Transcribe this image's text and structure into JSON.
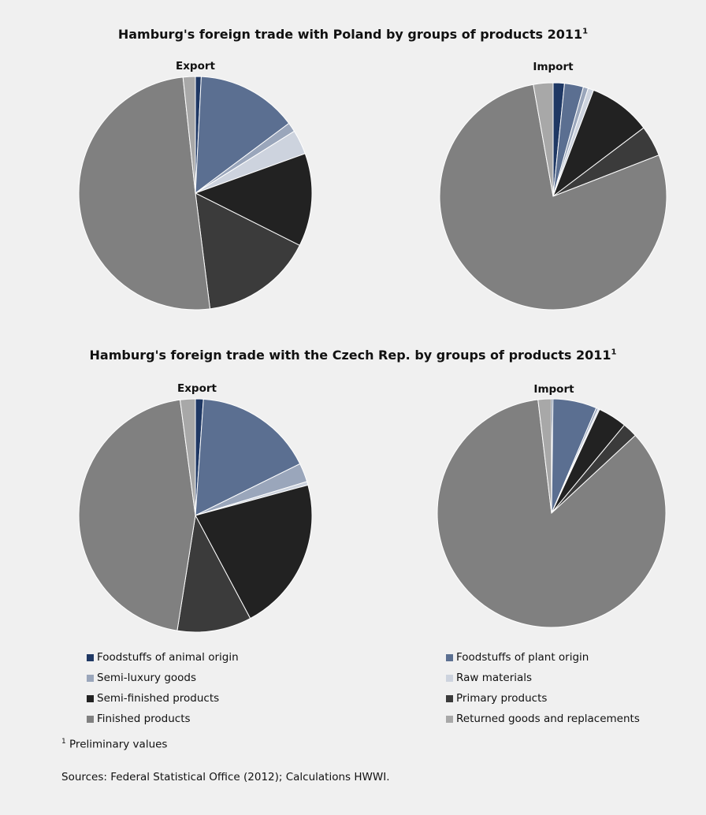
{
  "titles": {
    "poland": "Hamburg's foreign trade with Poland by groups of products 2011",
    "czech": "Hamburg's foreign trade with the Czech Rep. by groups of products 2011",
    "footnote_mark": "1"
  },
  "colors": {
    "Foodstuffs of animal origin": "#1f3864",
    "Foodstuffs of plant origin": "#5b6f91",
    "Semi-luxury goods": "#9aa6bb",
    "Raw materials": "#cdd3de",
    "Semi-finished products": "#222222",
    "Primary products": "#3b3b3b",
    "Finished products": "#808080",
    "Returned goods and replacements": "#a8a8a8"
  },
  "chart_data": [
    {
      "type": "pie",
      "title": "Hamburg's foreign trade with Poland by groups of products 2011",
      "subtitle": "Export",
      "categories": [
        "Foodstuffs of animal origin",
        "Foodstuffs of plant origin",
        "Semi-luxury goods",
        "Raw materials",
        "Semi-finished products",
        "Primary products",
        "Finished products",
        "Returned goods and replacements"
      ],
      "values": [
        0.8,
        14.0,
        1.3,
        3.4,
        12.9,
        15.6,
        50.3,
        1.7
      ]
    },
    {
      "type": "pie",
      "title": "Hamburg's foreign trade with Poland by groups of products 2011",
      "subtitle": "Import",
      "categories": [
        "Foodstuffs of animal origin",
        "Foodstuffs of plant origin",
        "Semi-luxury goods",
        "Raw materials",
        "Semi-finished products",
        "Primary products",
        "Finished products",
        "Returned goods and replacements"
      ],
      "values": [
        1.6,
        2.7,
        0.7,
        0.8,
        8.9,
        4.4,
        78.1,
        2.8
      ]
    },
    {
      "type": "pie",
      "title": "Hamburg's foreign trade with the Czech Rep. by groups of products 2011",
      "subtitle": "Export",
      "categories": [
        "Foodstuffs of animal origin",
        "Foodstuffs of plant origin",
        "Semi-luxury goods",
        "Raw materials",
        "Semi-finished products",
        "Primary products",
        "Finished products",
        "Returned goods and replacements"
      ],
      "values": [
        1.1,
        16.6,
        2.6,
        0.5,
        21.4,
        10.3,
        45.4,
        2.1
      ]
    },
    {
      "type": "pie",
      "title": "Hamburg's foreign trade with the Czech Rep. by groups of products 2011",
      "subtitle": "Import",
      "categories": [
        "Foodstuffs of animal origin",
        "Foodstuffs of plant origin",
        "Semi-luxury goods",
        "Raw materials",
        "Semi-finished products",
        "Primary products",
        "Finished products",
        "Returned goods and replacements"
      ],
      "values": [
        0.2,
        6.2,
        0.3,
        0.2,
        4.1,
        2.1,
        85.0,
        1.9
      ]
    }
  ],
  "legend": [
    "Foodstuffs of animal origin",
    "Foodstuffs of plant origin",
    "Semi-luxury goods",
    "Raw materials",
    "Semi-finished products",
    "Primary products",
    "Finished products",
    "Returned goods and replacements"
  ],
  "footnote": {
    "mark": "1",
    "text": "Preliminary values"
  },
  "sources": "Sources: Federal Statistical Office (2012); Calculations HWWI."
}
